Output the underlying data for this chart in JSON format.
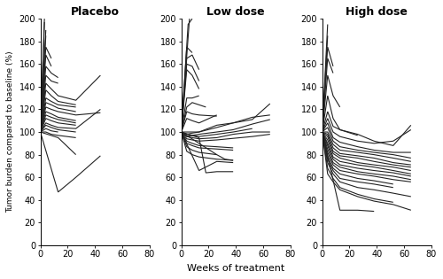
{
  "title_placebo": "Placebo",
  "title_low": "Low dose",
  "title_high": "High dose",
  "xlabel": "Weeks of treatment",
  "ylabel": "Tumor burden compared to baseline (%)",
  "ylim": [
    0,
    200
  ],
  "yticks": [
    0,
    20,
    40,
    60,
    80,
    100,
    120,
    140,
    160,
    180,
    200
  ],
  "xlim": [
    0,
    80
  ],
  "xticks": [
    0,
    20,
    40,
    60,
    80
  ],
  "line_color": "#222222",
  "linewidth": 0.8,
  "placebo_patients": [
    [
      [
        0,
        3
      ],
      [
        100,
        200
      ]
    ],
    [
      [
        0,
        3
      ],
      [
        100,
        197
      ]
    ],
    [
      [
        0,
        4
      ],
      [
        100,
        190
      ]
    ],
    [
      [
        0,
        4
      ],
      [
        100,
        185
      ]
    ],
    [
      [
        0,
        4,
        8
      ],
      [
        100,
        175,
        165
      ]
    ],
    [
      [
        0,
        4,
        8
      ],
      [
        100,
        168,
        158
      ]
    ],
    [
      [
        0,
        4,
        8,
        13
      ],
      [
        100,
        158,
        152,
        148
      ]
    ],
    [
      [
        0,
        4,
        8,
        13
      ],
      [
        100,
        150,
        145,
        143
      ]
    ],
    [
      [
        0,
        4,
        8,
        13,
        26,
        44
      ],
      [
        100,
        143,
        138,
        132,
        128,
        150
      ]
    ],
    [
      [
        0,
        4,
        8,
        13,
        26
      ],
      [
        100,
        137,
        132,
        127,
        124
      ]
    ],
    [
      [
        0,
        4,
        8,
        13,
        26
      ],
      [
        100,
        130,
        127,
        124,
        122
      ]
    ],
    [
      [
        0,
        4,
        8,
        13,
        26
      ],
      [
        100,
        126,
        124,
        121,
        118
      ]
    ],
    [
      [
        0,
        4,
        8,
        13,
        26,
        44
      ],
      [
        100,
        122,
        120,
        118,
        115,
        117
      ]
    ],
    [
      [
        0,
        4,
        8,
        13,
        26
      ],
      [
        100,
        118,
        116,
        113,
        110
      ]
    ],
    [
      [
        0,
        4,
        8,
        13,
        26
      ],
      [
        100,
        115,
        113,
        111,
        108
      ]
    ],
    [
      [
        0,
        4,
        8,
        13,
        26
      ],
      [
        100,
        112,
        110,
        108,
        106
      ]
    ],
    [
      [
        0,
        4,
        8,
        13,
        26,
        44
      ],
      [
        100,
        108,
        106,
        104,
        103,
        120
      ]
    ],
    [
      [
        0,
        4,
        8,
        13,
        26
      ],
      [
        100,
        106,
        104,
        102,
        100
      ]
    ],
    [
      [
        0,
        4,
        8,
        13
      ],
      [
        100,
        103,
        101,
        100
      ]
    ],
    [
      [
        0,
        4,
        8,
        13,
        26
      ],
      [
        100,
        100,
        98,
        97,
        95
      ]
    ],
    [
      [
        0,
        13,
        26
      ],
      [
        100,
        95,
        80
      ]
    ],
    [
      [
        0,
        13,
        26,
        44
      ],
      [
        100,
        47,
        60,
        79
      ]
    ]
  ],
  "lowdose_patients": [
    [
      [
        0,
        6
      ],
      [
        100,
        200
      ]
    ],
    [
      [
        0,
        5,
        8
      ],
      [
        100,
        195,
        200
      ]
    ],
    [
      [
        0,
        4,
        8
      ],
      [
        100,
        175,
        170
      ]
    ],
    [
      [
        0,
        4,
        8,
        13
      ],
      [
        100,
        165,
        168,
        155
      ]
    ],
    [
      [
        0,
        4,
        8,
        13
      ],
      [
        100,
        160,
        158,
        145
      ]
    ],
    [
      [
        0,
        4,
        8,
        13
      ],
      [
        100,
        155,
        150,
        138
      ]
    ],
    [
      [
        0,
        4,
        8,
        13
      ],
      [
        100,
        130,
        130,
        132
      ]
    ],
    [
      [
        0,
        4,
        8,
        13,
        18
      ],
      [
        100,
        122,
        126,
        124,
        122
      ]
    ],
    [
      [
        0,
        4,
        8,
        13,
        26
      ],
      [
        100,
        118,
        116,
        115,
        114
      ]
    ],
    [
      [
        0,
        4,
        8,
        13,
        26
      ],
      [
        100,
        112,
        110,
        108,
        115
      ]
    ],
    [
      [
        0,
        4,
        8,
        13,
        26,
        38,
        52,
        65
      ],
      [
        100,
        100,
        100,
        100,
        104,
        108,
        113,
        115
      ]
    ],
    [
      [
        0,
        4,
        8,
        13,
        26,
        38,
        52,
        65
      ],
      [
        100,
        98,
        99,
        100,
        106,
        108,
        111,
        125
      ]
    ],
    [
      [
        0,
        4,
        8,
        13,
        26,
        38,
        52
      ],
      [
        100,
        98,
        97,
        96,
        98,
        100,
        103
      ]
    ],
    [
      [
        0,
        4,
        8,
        13,
        26,
        38,
        52,
        65
      ],
      [
        100,
        96,
        97,
        98,
        100,
        102,
        107,
        111
      ]
    ],
    [
      [
        0,
        4,
        8,
        13,
        26,
        38,
        52,
        65
      ],
      [
        100,
        96,
        95,
        94,
        95,
        98,
        100,
        100
      ]
    ],
    [
      [
        0,
        4,
        8,
        13,
        26,
        52,
        65
      ],
      [
        100,
        94,
        93,
        92,
        93,
        96,
        98
      ]
    ],
    [
      [
        0,
        4,
        8,
        13,
        26,
        38
      ],
      [
        100,
        92,
        90,
        88,
        87,
        86
      ]
    ],
    [
      [
        0,
        4,
        8,
        13,
        26,
        38
      ],
      [
        100,
        90,
        88,
        86,
        85,
        84
      ]
    ],
    [
      [
        0,
        4,
        8,
        13,
        26
      ],
      [
        100,
        87,
        84,
        82,
        80
      ]
    ],
    [
      [
        0,
        4,
        8,
        13,
        26,
        38
      ],
      [
        100,
        83,
        80,
        78,
        76,
        75
      ]
    ],
    [
      [
        0,
        13,
        26,
        38
      ],
      [
        100,
        66,
        74,
        73
      ]
    ],
    [
      [
        0,
        13,
        18,
        26,
        38
      ],
      [
        100,
        95,
        64,
        65,
        65
      ]
    ],
    [
      [
        0,
        13,
        26,
        32,
        38
      ],
      [
        100,
        90,
        80,
        76,
        75
      ]
    ]
  ],
  "highdose_patients": [
    [
      [
        0,
        4
      ],
      [
        100,
        195
      ]
    ],
    [
      [
        0,
        4
      ],
      [
        100,
        185
      ]
    ],
    [
      [
        0,
        4,
        8
      ],
      [
        100,
        175,
        158
      ]
    ],
    [
      [
        0,
        4,
        8
      ],
      [
        100,
        165,
        152
      ]
    ],
    [
      [
        0,
        4,
        8,
        13
      ],
      [
        100,
        150,
        132,
        122
      ]
    ],
    [
      [
        0,
        4,
        8,
        13,
        26
      ],
      [
        100,
        132,
        112,
        102,
        97
      ]
    ],
    [
      [
        0,
        4,
        8,
        13,
        26,
        38,
        52,
        65
      ],
      [
        100,
        118,
        105,
        102,
        98,
        92,
        88,
        106
      ]
    ],
    [
      [
        0,
        4,
        8,
        13,
        26,
        38,
        52,
        65
      ],
      [
        100,
        112,
        100,
        96,
        92,
        90,
        92,
        102
      ]
    ],
    [
      [
        0,
        4,
        8,
        13,
        26,
        38,
        52,
        65
      ],
      [
        100,
        108,
        95,
        91,
        87,
        84,
        82,
        82
      ]
    ],
    [
      [
        0,
        4,
        8,
        13,
        26,
        38,
        52,
        65
      ],
      [
        100,
        104,
        92,
        87,
        84,
        82,
        80,
        77
      ]
    ],
    [
      [
        0,
        4,
        8,
        13,
        26,
        38,
        52,
        65
      ],
      [
        100,
        100,
        89,
        84,
        82,
        80,
        77,
        74
      ]
    ],
    [
      [
        0,
        4,
        8,
        13,
        26,
        38,
        52,
        65
      ],
      [
        100,
        98,
        86,
        81,
        79,
        77,
        73,
        71
      ]
    ],
    [
      [
        0,
        4,
        8,
        13,
        26,
        38,
        52,
        65
      ],
      [
        100,
        96,
        83,
        79,
        77,
        74,
        71,
        69
      ]
    ],
    [
      [
        0,
        4,
        8,
        13,
        26,
        38,
        52,
        65
      ],
      [
        100,
        93,
        81,
        77,
        73,
        71,
        69,
        66
      ]
    ],
    [
      [
        0,
        4,
        8,
        13,
        26,
        38,
        52,
        65
      ],
      [
        100,
        90,
        78,
        74,
        71,
        69,
        66,
        63
      ]
    ],
    [
      [
        0,
        4,
        8,
        13,
        26,
        38,
        52,
        65
      ],
      [
        100,
        88,
        76,
        71,
        68,
        66,
        64,
        61
      ]
    ],
    [
      [
        0,
        4,
        8,
        13,
        26,
        38,
        52,
        65
      ],
      [
        100,
        85,
        73,
        69,
        65,
        63,
        61,
        58
      ]
    ],
    [
      [
        0,
        4,
        8,
        13,
        26,
        38,
        52,
        65
      ],
      [
        100,
        82,
        71,
        66,
        63,
        61,
        58,
        56
      ]
    ],
    [
      [
        0,
        4,
        8,
        13,
        26,
        38,
        52
      ],
      [
        100,
        79,
        68,
        63,
        59,
        57,
        54
      ]
    ],
    [
      [
        0,
        4,
        8,
        13,
        26,
        38,
        52
      ],
      [
        100,
        76,
        66,
        59,
        56,
        54,
        51
      ]
    ],
    [
      [
        0,
        4,
        8,
        13,
        26,
        38,
        52,
        65
      ],
      [
        100,
        73,
        63,
        56,
        51,
        49,
        46,
        43
      ]
    ],
    [
      [
        0,
        4,
        8,
        13,
        26,
        38,
        52
      ],
      [
        100,
        68,
        59,
        51,
        45,
        41,
        38
      ]
    ],
    [
      [
        0,
        4,
        8,
        13,
        26,
        38,
        52,
        65
      ],
      [
        100,
        63,
        56,
        49,
        43,
        39,
        36,
        31
      ]
    ],
    [
      [
        0,
        13,
        26,
        38
      ],
      [
        100,
        31,
        31,
        30
      ]
    ]
  ]
}
